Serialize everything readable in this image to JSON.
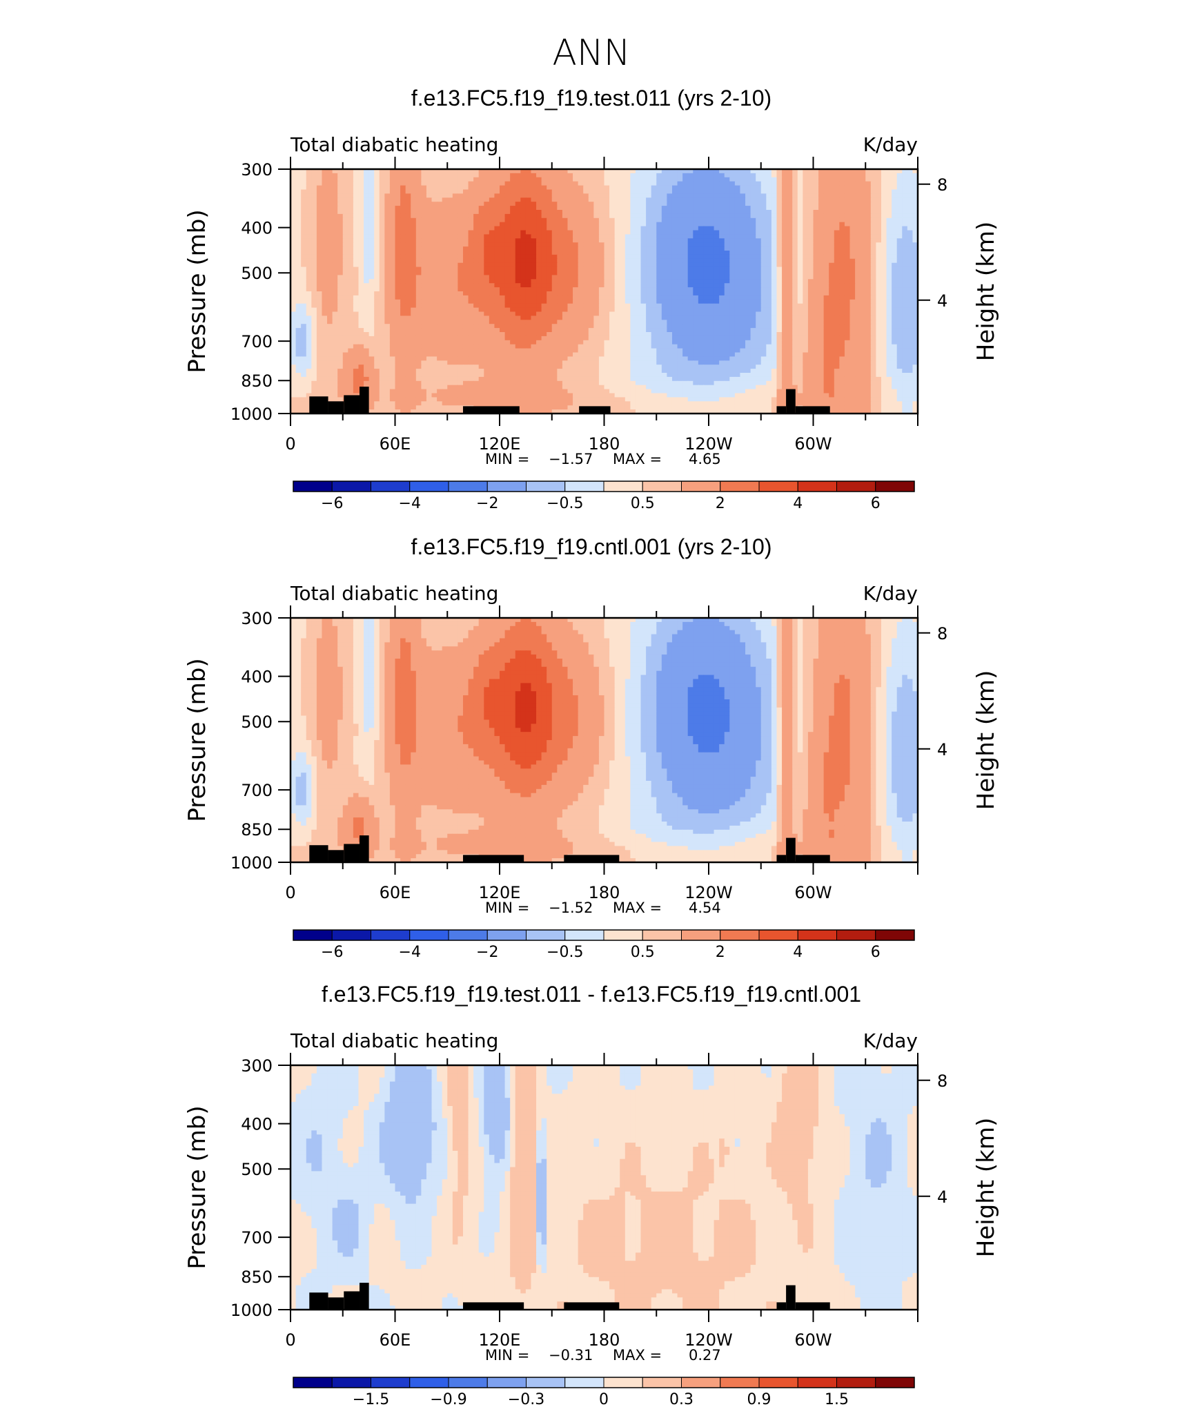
{
  "title": "ANN",
  "colors": {
    "neg": [
      "#00008b",
      "#0b18a8",
      "#1e3dce",
      "#2f5fe8",
      "#4d7be8",
      "#7ea1ef",
      "#a8c3f5",
      "#d3e5fb"
    ],
    "pos": [
      "#fde3cf",
      "#fbc4a8",
      "#f6a07e",
      "#f07a52",
      "#e8552e",
      "#d4331a",
      "#b21d0f",
      "#7f0606"
    ],
    "land": "#000000"
  },
  "chart_data": [
    {
      "type": "heatmap",
      "panel_title": "f.e13.FC5.f19_f19.test.011 (yrs 2-10)",
      "left_title": "Total diabatic heating",
      "units": "K/day",
      "ylabel": "Pressure (mb)",
      "ylabel_right": "Height (km)",
      "x_ticks": [
        "0",
        "60E",
        "120E",
        "180",
        "120W",
        "60W"
      ],
      "x_tick_lon": [
        0,
        60,
        120,
        180,
        240,
        300
      ],
      "y_ticks": [
        "300",
        "400",
        "500",
        "700",
        "850",
        "1000"
      ],
      "y_tick_p": [
        300,
        400,
        500,
        700,
        850,
        1000
      ],
      "z_ticks": [
        "8",
        "4"
      ],
      "z_tick_km": [
        8,
        4
      ],
      "stats": {
        "min_label": "MIN =",
        "min": "−1.57",
        "max_label": "MAX =",
        "max": "4.65"
      },
      "min_value": -1.57,
      "max_value": 4.65,
      "colorbar_labels": [
        "−6",
        "−4",
        "−2",
        "−0.5",
        "0.5",
        "2",
        "4",
        "6"
      ],
      "cbar_levels": [
        -6,
        -5,
        -4,
        -3,
        -2,
        -1,
        -0.5,
        0,
        0.5,
        1,
        2,
        3,
        4,
        5,
        6
      ]
    },
    {
      "type": "heatmap",
      "panel_title": "f.e13.FC5.f19_f19.cntl.001 (yrs 2-10)",
      "left_title": "Total diabatic heating",
      "units": "K/day",
      "ylabel": "Pressure (mb)",
      "ylabel_right": "Height (km)",
      "x_ticks": [
        "0",
        "60E",
        "120E",
        "180",
        "120W",
        "60W"
      ],
      "x_tick_lon": [
        0,
        60,
        120,
        180,
        240,
        300
      ],
      "y_ticks": [
        "300",
        "400",
        "500",
        "700",
        "850",
        "1000"
      ],
      "y_tick_p": [
        300,
        400,
        500,
        700,
        850,
        1000
      ],
      "z_ticks": [
        "8",
        "4"
      ],
      "z_tick_km": [
        8,
        4
      ],
      "stats": {
        "min_label": "MIN =",
        "min": "−1.52",
        "max_label": "MAX =",
        "max": "4.54"
      },
      "min_value": -1.52,
      "max_value": 4.54,
      "colorbar_labels": [
        "−6",
        "−4",
        "−2",
        "−0.5",
        "0.5",
        "2",
        "4",
        "6"
      ],
      "cbar_levels": [
        -6,
        -5,
        -4,
        -3,
        -2,
        -1,
        -0.5,
        0,
        0.5,
        1,
        2,
        3,
        4,
        5,
        6
      ]
    },
    {
      "type": "heatmap",
      "panel_title": "f.e13.FC5.f19_f19.test.011 - f.e13.FC5.f19_f19.cntl.001",
      "left_title": "Total diabatic heating",
      "units": "K/day",
      "ylabel": "Pressure (mb)",
      "ylabel_right": "Height (km)",
      "x_ticks": [
        "0",
        "60E",
        "120E",
        "180",
        "120W",
        "60W"
      ],
      "x_tick_lon": [
        0,
        60,
        120,
        180,
        240,
        300
      ],
      "y_ticks": [
        "300",
        "400",
        "500",
        "700",
        "850",
        "1000"
      ],
      "y_tick_p": [
        300,
        400,
        500,
        700,
        850,
        1000
      ],
      "z_ticks": [
        "8",
        "4"
      ],
      "z_tick_km": [
        8,
        4
      ],
      "stats": {
        "min_label": "MIN =",
        "min": "−0.31",
        "max_label": "MAX =",
        "max": "0.27"
      },
      "min_value": -0.31,
      "max_value": 0.27,
      "colorbar_labels": [
        "−1.5",
        "−0.9",
        "−0.3",
        "0",
        "0.3",
        "0.9",
        "1.5"
      ],
      "cbar_levels": [
        -1.8,
        -1.5,
        -1.2,
        -0.9,
        -0.6,
        -0.3,
        -0.1,
        0,
        0.1,
        0.3,
        0.6,
        0.9,
        1.2,
        1.5,
        1.8
      ]
    }
  ]
}
